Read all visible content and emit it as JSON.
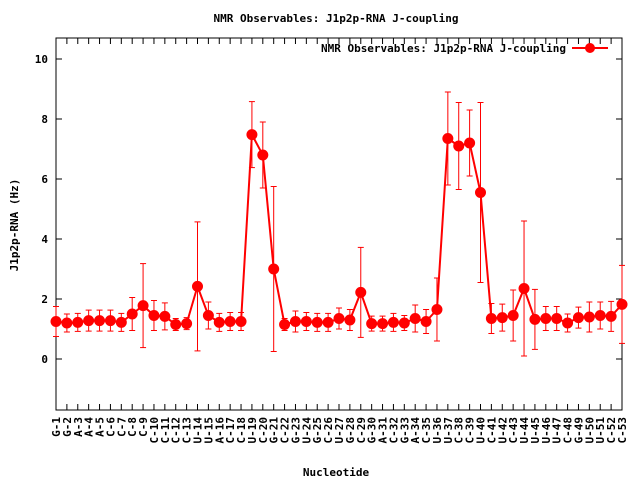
{
  "chart_data": {
    "type": "line",
    "title": "NMR Observables: J1p2p-RNA J-coupling",
    "xlabel": "Nucleotide",
    "ylabel": "J1p2p-RNA (Hz)",
    "ylim": [
      -1.7,
      10.7
    ],
    "yticks": [
      0,
      2,
      4,
      6,
      8,
      10
    ],
    "grid": false,
    "legend_position": "top-right",
    "color": "#ff0000",
    "series": [
      {
        "name": "NMR Observables: J1p2p-RNA J-coupling",
        "categories": [
          "G-1",
          "G-2",
          "A-3",
          "A-4",
          "A-5",
          "C-6",
          "C-7",
          "C-8",
          "C-9",
          "C-10",
          "C-11",
          "C-12",
          "C-13",
          "U-14",
          "U-15",
          "A-16",
          "C-17",
          "C-18",
          "U-19",
          "C-20",
          "G-21",
          "C-22",
          "G-23",
          "U-24",
          "G-25",
          "C-26",
          "U-27",
          "G-28",
          "C-29",
          "G-30",
          "A-31",
          "C-32",
          "G-33",
          "A-34",
          "C-35",
          "U-36",
          "U-37",
          "C-38",
          "C-39",
          "U-40",
          "C-41",
          "U-42",
          "C-43",
          "U-44",
          "U-45",
          "U-46",
          "U-47",
          "C-48",
          "G-49",
          "U-50",
          "U-51",
          "C-52",
          "C-53"
        ],
        "values": [
          1.25,
          1.2,
          1.22,
          1.28,
          1.28,
          1.28,
          1.22,
          1.5,
          1.78,
          1.45,
          1.42,
          1.15,
          1.18,
          2.42,
          1.45,
          1.22,
          1.25,
          1.25,
          7.48,
          6.8,
          3.0,
          1.15,
          1.25,
          1.25,
          1.22,
          1.22,
          1.35,
          1.3,
          2.22,
          1.18,
          1.18,
          1.22,
          1.2,
          1.35,
          1.25,
          1.65,
          7.35,
          7.1,
          7.2,
          5.55,
          1.35,
          1.38,
          1.45,
          2.35,
          1.32,
          1.35,
          1.35,
          1.2,
          1.38,
          1.4,
          1.45,
          1.42,
          1.82
        ],
        "errors": [
          0.5,
          0.3,
          0.3,
          0.35,
          0.35,
          0.35,
          0.3,
          0.55,
          1.4,
          0.5,
          0.45,
          0.2,
          0.2,
          2.15,
          0.45,
          0.3,
          0.3,
          0.3,
          1.1,
          1.1,
          2.75,
          0.2,
          0.35,
          0.3,
          0.3,
          0.3,
          0.35,
          0.35,
          1.5,
          0.25,
          0.25,
          0.3,
          0.25,
          0.45,
          0.4,
          1.05,
          1.55,
          1.45,
          1.1,
          3.0,
          0.5,
          0.45,
          0.85,
          2.25,
          1.0,
          0.4,
          0.4,
          0.3,
          0.35,
          0.5,
          0.45,
          0.5,
          1.3
        ]
      }
    ]
  }
}
